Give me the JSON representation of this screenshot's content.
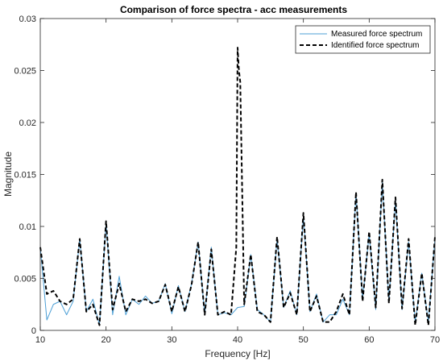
{
  "chart_data": {
    "type": "line",
    "title": "Comparison of force spectra - acc measurements",
    "xlabel": "Frequency [Hz]",
    "ylabel": "Magnitude",
    "xlim": [
      10,
      70
    ],
    "ylim": [
      0,
      0.03
    ],
    "xticks": [
      10,
      20,
      30,
      40,
      50,
      60,
      70
    ],
    "yticks": [
      0,
      0.005,
      0.01,
      0.015,
      0.02,
      0.025,
      0.03
    ],
    "grid": false,
    "legend_position": "top-right",
    "colors": {
      "measured": "#4c9fd6",
      "identified": "#000000",
      "axes": "#262626"
    },
    "series": [
      {
        "name": "Measured force spectrum",
        "style": "solid",
        "x": [
          10,
          11,
          12,
          13,
          14,
          15,
          16,
          17,
          18,
          19,
          20,
          21,
          22,
          23,
          24,
          25,
          26,
          27,
          28,
          29,
          30,
          31,
          32,
          33,
          34,
          35,
          36,
          37,
          38,
          39,
          40,
          41,
          42,
          43,
          44,
          45,
          46,
          47,
          48,
          49,
          50,
          51,
          52,
          53,
          54,
          55,
          56,
          57,
          58,
          59,
          60,
          61,
          62,
          63,
          64,
          65,
          66,
          67,
          68,
          69,
          70
        ],
        "values": [
          0.008,
          0.001,
          0.0025,
          0.0028,
          0.0015,
          0.0028,
          0.0088,
          0.0018,
          0.003,
          0.0005,
          0.0103,
          0.0015,
          0.0052,
          0.0015,
          0.003,
          0.0025,
          0.0033,
          0.0026,
          0.0028,
          0.0045,
          0.0016,
          0.0043,
          0.0018,
          0.0045,
          0.0085,
          0.0015,
          0.008,
          0.0015,
          0.0017,
          0.0015,
          0.0022,
          0.0023,
          0.0073,
          0.002,
          0.0015,
          0.0008,
          0.0088,
          0.0022,
          0.0038,
          0.0015,
          0.011,
          0.0018,
          0.0035,
          0.0008,
          0.0015,
          0.0015,
          0.003,
          0.0015,
          0.0132,
          0.003,
          0.0093,
          0.002,
          0.0142,
          0.0028,
          0.0125,
          0.002,
          0.0085,
          0.0008,
          0.0055,
          0.0008,
          0.0088
        ]
      },
      {
        "name": "Identified force spectrum",
        "style": "dashed",
        "x": [
          10,
          11,
          12,
          13,
          14,
          15,
          16,
          17,
          18,
          19,
          20,
          21,
          22,
          23,
          24,
          25,
          26,
          27,
          28,
          29,
          30,
          31,
          32,
          33,
          34,
          35,
          36,
          37,
          38,
          39,
          39.8,
          40,
          40.2,
          40.4,
          41,
          42,
          43,
          44,
          45,
          46,
          47,
          48,
          49,
          50,
          51,
          52,
          53,
          54,
          55,
          56,
          57,
          58,
          59,
          60,
          61,
          62,
          63,
          64,
          65,
          66,
          67,
          68,
          69,
          70
        ],
        "values": [
          0.008,
          0.0035,
          0.0038,
          0.0028,
          0.0025,
          0.003,
          0.0088,
          0.0018,
          0.0025,
          0.0005,
          0.0105,
          0.002,
          0.0045,
          0.0018,
          0.003,
          0.0028,
          0.003,
          0.0026,
          0.0028,
          0.0044,
          0.0018,
          0.0042,
          0.0018,
          0.0044,
          0.0085,
          0.0015,
          0.0078,
          0.0015,
          0.0018,
          0.0015,
          0.008,
          0.0272,
          0.025,
          0.0239,
          0.0025,
          0.0073,
          0.0018,
          0.0015,
          0.0008,
          0.009,
          0.0022,
          0.0036,
          0.0015,
          0.0113,
          0.0018,
          0.0033,
          0.0008,
          0.0008,
          0.0018,
          0.0035,
          0.0015,
          0.0133,
          0.0028,
          0.0095,
          0.0022,
          0.0145,
          0.0026,
          0.0128,
          0.0021,
          0.0088,
          0.0005,
          0.0055,
          0.0005,
          0.009
        ]
      }
    ]
  }
}
